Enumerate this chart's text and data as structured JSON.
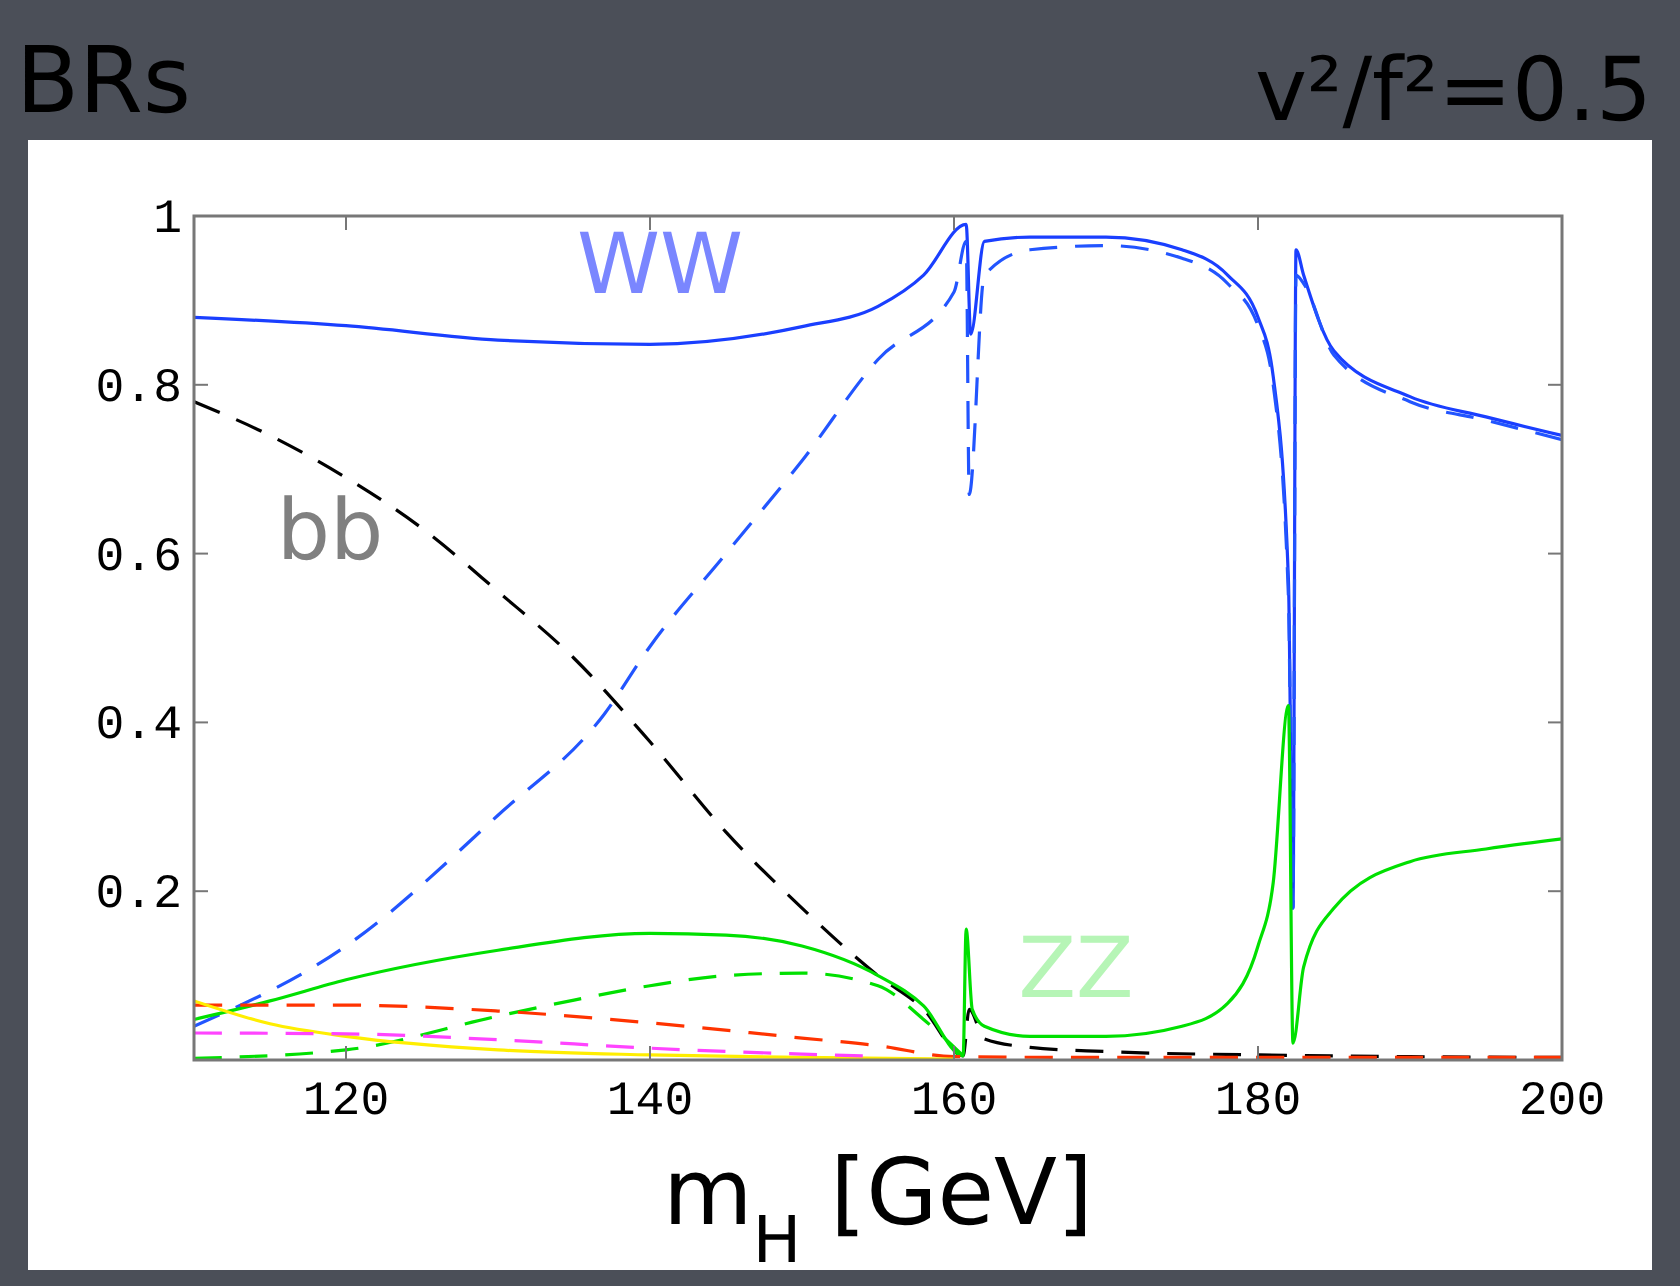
{
  "chart_data": {
    "type": "line",
    "title": "BRs",
    "subtitle": "v²/f²=0.5",
    "xlabel": "m$_{H}$ [GeV]",
    "xlim": [
      110,
      200
    ],
    "xticks": [
      120,
      140,
      160,
      180,
      200
    ],
    "ylim": [
      0,
      1
    ],
    "yticks": [
      0.2,
      0.4,
      0.6,
      0.8,
      1
    ],
    "grid": false,
    "marker": "none",
    "annotations": [
      "WW",
      "bb",
      "ZZ"
    ],
    "series": [
      {
        "color": "#1a3fff",
        "line_style": "solid",
        "x": [
          110,
          120,
          130,
          140,
          150,
          155,
          158,
          160.8,
          161.1,
          162,
          165,
          170,
          175,
          178,
          180,
          181,
          182,
          182.3,
          182.5,
          183,
          185,
          190,
          195,
          200
        ],
        "values": [
          0.88,
          0.87,
          0.853,
          0.848,
          0.869,
          0.893,
          0.93,
          0.99,
          0.86,
          0.97,
          0.975,
          0.975,
          0.96,
          0.93,
          0.88,
          0.81,
          0.57,
          0.18,
          0.96,
          0.93,
          0.84,
          0.786,
          0.762,
          0.74
        ]
      },
      {
        "color": "#2255ff",
        "line_style": "dashed",
        "x": [
          110,
          120,
          130,
          137,
          140,
          145,
          150,
          155,
          160,
          160.8,
          161,
          162,
          165,
          170,
          175,
          178,
          180,
          181,
          182,
          182.3,
          182.5,
          183,
          185,
          190,
          195,
          200
        ],
        "values": [
          0.04,
          0.135,
          0.29,
          0.41,
          0.49,
          0.6,
          0.71,
          0.83,
          0.91,
          0.97,
          0.67,
          0.93,
          0.96,
          0.965,
          0.95,
          0.92,
          0.87,
          0.8,
          0.55,
          0.18,
          0.93,
          0.92,
          0.835,
          0.78,
          0.758,
          0.735
        ]
      },
      {
        "color": "#000000",
        "line_style": "dashed",
        "x": [
          110,
          115,
          120,
          125,
          130,
          135,
          140,
          145,
          150,
          155,
          158,
          160.6,
          161,
          162,
          165,
          170,
          180,
          190,
          200
        ],
        "values": [
          0.78,
          0.74,
          0.69,
          0.63,
          0.555,
          0.476,
          0.377,
          0.27,
          0.18,
          0.1,
          0.06,
          0.005,
          0.06,
          0.025,
          0.015,
          0.01,
          0.006,
          0.004,
          0.003
        ]
      },
      {
        "color": "#00e000",
        "line_style": "solid",
        "x": [
          110,
          115,
          120,
          130,
          140,
          145,
          150,
          155,
          158,
          160.6,
          160.8,
          161.2,
          162,
          165,
          170,
          175,
          178,
          180,
          181,
          182,
          182.3,
          183,
          185,
          190,
          195,
          200
        ],
        "values": [
          0.048,
          0.07,
          0.095,
          0.13,
          0.15,
          0.148,
          0.135,
          0.1,
          0.064,
          0.005,
          0.155,
          0.06,
          0.04,
          0.028,
          0.028,
          0.04,
          0.067,
          0.135,
          0.21,
          0.42,
          0.02,
          0.11,
          0.18,
          0.235,
          0.25,
          0.262
        ]
      },
      {
        "color": "#00e000",
        "line_style": "dashed",
        "x": [
          110,
          120,
          130,
          135,
          140,
          145,
          150,
          155,
          158,
          160.6
        ],
        "values": [
          0.002,
          0.012,
          0.052,
          0.071,
          0.088,
          0.1,
          0.103,
          0.088,
          0.048,
          0.005
        ]
      },
      {
        "color": "#ff3300",
        "line_style": "dashed",
        "x": [
          110,
          120,
          130,
          140,
          150,
          155,
          160,
          170,
          180,
          190,
          200
        ],
        "values": [
          0.065,
          0.065,
          0.058,
          0.044,
          0.026,
          0.017,
          0.004,
          0.003,
          0.003,
          0.003,
          0.003
        ]
      },
      {
        "color": "#ffee00",
        "line_style": "solid",
        "x": [
          110,
          115,
          120,
          130,
          140,
          150,
          160
        ],
        "values": [
          0.07,
          0.043,
          0.028,
          0.012,
          0.006,
          0.003,
          0.001
        ]
      },
      {
        "color": "#ff44ff",
        "line_style": "dashed",
        "x": [
          110,
          120,
          130,
          140,
          150,
          154
        ],
        "values": [
          0.032,
          0.031,
          0.024,
          0.014,
          0.007,
          0.005
        ]
      }
    ]
  }
}
